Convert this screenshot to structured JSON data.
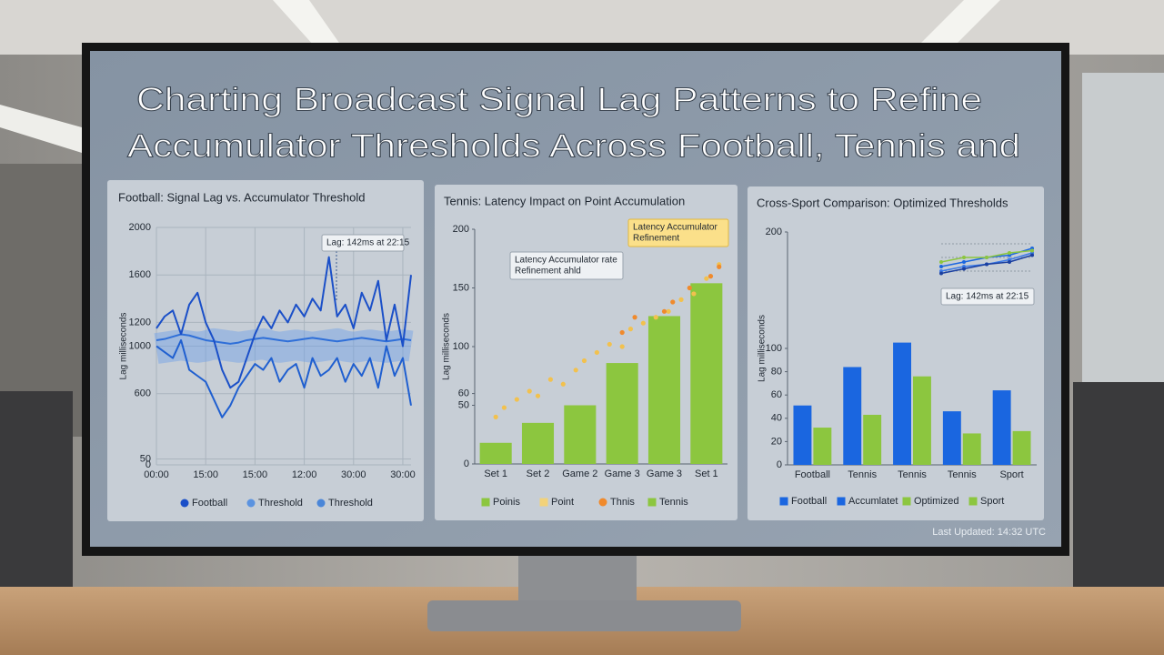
{
  "page": {
    "title_lines": [
      "Charting Broadcast Signal Lag Patterns to Refine",
      "Accumulator Thresholds Across Football, Tennis and"
    ],
    "footer": "Last Updated: 14:32 UTC"
  },
  "chart_data": [
    {
      "type": "line",
      "title": "Football: Signal Lag vs. Accumulator Threshold",
      "y_label": "Lag milliseconds",
      "categories": [
        "00:00",
        null,
        null,
        null,
        null,
        null,
        "15:00",
        null,
        null,
        null,
        null,
        null,
        "15:00",
        null,
        null,
        null,
        null,
        null,
        "12:00",
        null,
        null,
        null,
        null,
        null,
        "30:00",
        null,
        null,
        null,
        null,
        null,
        "30:00",
        null
      ],
      "series": [
        {
          "color": "#6fa0e8",
          "style": "band",
          "values": [
            980,
            990,
            1000,
            1010,
            1000,
            990,
            1000,
            1020,
            1010,
            1000,
            990,
            1000,
            1010,
            1020,
            1000,
            990,
            1000,
            1010,
            1000,
            990,
            1000,
            1010,
            1020,
            1000,
            990,
            1000,
            1010,
            1000,
            990,
            1000,
            1010,
            1000
          ]
        },
        {
          "color": "#2f6fd8",
          "style": "line",
          "values": [
            1050,
            1060,
            1080,
            1100,
            1090,
            1070,
            1050,
            1040,
            1030,
            1020,
            1030,
            1050,
            1060,
            1070,
            1060,
            1050,
            1040,
            1050,
            1060,
            1070,
            1060,
            1050,
            1040,
            1050,
            1060,
            1070,
            1060,
            1050,
            1040,
            1050,
            1060,
            1050
          ]
        },
        {
          "color": "#1f5fd0",
          "style": "line",
          "values": [
            1000,
            950,
            900,
            1050,
            800,
            750,
            700,
            550,
            400,
            500,
            650,
            750,
            850,
            800,
            900,
            700,
            800,
            850,
            650,
            900,
            750,
            800,
            900,
            700,
            850,
            750,
            900,
            650,
            1000,
            750,
            900,
            500
          ]
        },
        {
          "color": "#1a4fc8",
          "style": "line",
          "values": [
            1150,
            1250,
            1300,
            1100,
            1350,
            1450,
            1200,
            1050,
            800,
            650,
            700,
            900,
            1100,
            1250,
            1150,
            1300,
            1200,
            1350,
            1250,
            1400,
            1300,
            1750,
            1250,
            1350,
            1150,
            1450,
            1300,
            1550,
            1050,
            1350,
            1000,
            1600
          ]
        }
      ],
      "ylim": [
        0,
        2000
      ],
      "yticks": [
        0,
        50,
        600,
        1000,
        1200,
        1600,
        2000
      ],
      "grid": true,
      "legend": [
        {
          "label": "Football",
          "color": "#1a4fc8",
          "shape": "dot"
        },
        {
          "label": "Threshold",
          "color": "#5b93e0",
          "shape": "dot"
        },
        {
          "label": "Threshold",
          "color": "#4a86d8",
          "shape": "dot"
        }
      ],
      "annotations": [
        {
          "lines": [
            "Lag: 142ms at 22:15"
          ],
          "style": "white"
        }
      ]
    },
    {
      "type": "bar",
      "title": "Tennis: Latency Impact on Point Accumulation",
      "y_label": "Lag milliseconds",
      "categories": [
        "Set 1",
        "Set 2",
        "Game 2",
        "Game 3",
        "Game 3",
        "Set 1"
      ],
      "series": [
        {
          "color": "#8cc63f",
          "values": [
            18,
            35,
            50,
            86,
            126,
            154
          ]
        },
        {
          "color": "#f2c14e",
          "x": [
            0,
            0.2,
            0.5,
            0.8,
            1.0,
            1.3,
            1.6,
            1.9,
            2.1,
            2.4,
            2.7,
            3.0,
            3.2,
            3.5,
            3.8,
            4.1,
            4.4,
            4.7,
            5.0,
            5.3
          ],
          "values": [
            40,
            48,
            55,
            62,
            58,
            72,
            68,
            80,
            88,
            95,
            102,
            100,
            115,
            120,
            125,
            130,
            140,
            145,
            158,
            170
          ]
        },
        {
          "color": "#f08a2c",
          "x": [
            3.0,
            3.3,
            4.0,
            4.2,
            4.6,
            5.1,
            5.3
          ],
          "values": [
            112,
            125,
            130,
            138,
            150,
            160,
            168
          ]
        }
      ],
      "ylim": [
        0,
        200
      ],
      "yticks": [
        0,
        50,
        60,
        100,
        150,
        200
      ],
      "grid": false,
      "legend": [
        {
          "label": "Poinis",
          "color": "#8cc63f",
          "shape": "square"
        },
        {
          "label": "Point",
          "color": "#f2d27a",
          "shape": "square"
        },
        {
          "label": "Thnis",
          "color": "#f08a2c",
          "shape": "dot"
        },
        {
          "label": "Tennis",
          "color": "#8cc63f",
          "shape": "square"
        }
      ],
      "annotations": [
        {
          "lines": [
            "Latency Accumulator",
            "Refinement"
          ],
          "style": "yellow"
        },
        {
          "lines": [
            "Latency Accumulator rate",
            "Refinement ahld"
          ],
          "style": "white"
        }
      ]
    },
    {
      "type": "bar",
      "title": "Cross-Sport Comparison: Optimized Thresholds",
      "y_label": "Lag milliseconds",
      "categories": [
        "Football",
        "Tennis",
        "Tennis",
        "Tennis",
        "Sport"
      ],
      "series": [
        {
          "color": "#1a66e0",
          "values": [
            51,
            84,
            105,
            46,
            64
          ]
        },
        {
          "color": "#8cc63f",
          "values": [
            32,
            43,
            76,
            27,
            29
          ]
        }
      ],
      "ylim": [
        0,
        200
      ],
      "yticks": [
        0,
        20,
        40,
        60,
        80,
        100,
        200
      ],
      "grid": false,
      "legend": [
        {
          "label": "Football",
          "color": "#1a66e0",
          "shape": "square"
        },
        {
          "label": "Accumlatet",
          "color": "#1a66e0",
          "shape": "square"
        },
        {
          "label": "Optimized",
          "color": "#8cc63f",
          "shape": "square"
        },
        {
          "label": "Sport",
          "color": "#8cc63f",
          "shape": "square"
        }
      ],
      "annotations": [
        {
          "lines": [
            "Lag: 142ms at 22:15"
          ],
          "style": "white"
        }
      ],
      "inset": {
        "ylim": [
          0,
          10
        ],
        "series": [
          {
            "color": "#1a66e0",
            "values": [
              3,
              4,
              5,
              5.5,
              7
            ]
          },
          {
            "color": "#3a7ae8",
            "values": [
              2,
              3,
              3.5,
              4.5,
              6
            ]
          },
          {
            "color": "#8cc63f",
            "values": [
              4,
              5,
              5,
              6,
              6.5
            ]
          },
          {
            "color": "#1a3fa0",
            "values": [
              1.5,
              2.5,
              3.5,
              4,
              5.5
            ]
          }
        ]
      }
    }
  ]
}
